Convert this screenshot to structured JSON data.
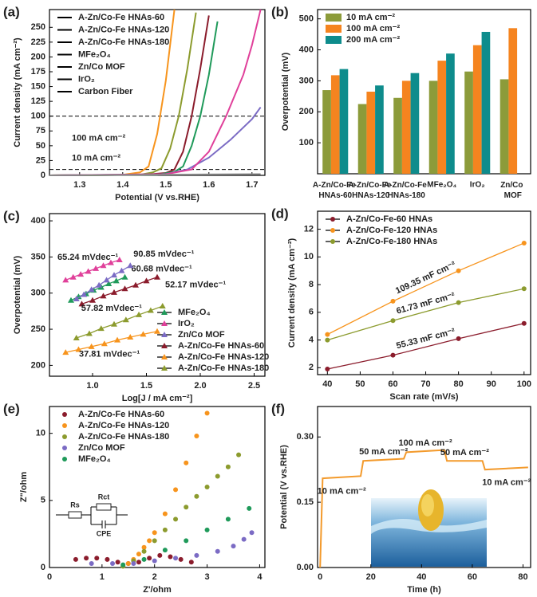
{
  "chart_data": [
    {
      "panel": "(a)",
      "type": "line",
      "xlabel": "Potential (V vs.RHE)",
      "ylabel": "Current density (mA cm⁻²)",
      "xlim": [
        1.23,
        1.73
      ],
      "ylim": [
        0,
        280
      ],
      "xticks": [
        1.3,
        1.4,
        1.5,
        1.6,
        1.7
      ],
      "yticks": [
        0,
        25,
        50,
        75,
        100,
        125,
        150,
        175,
        200,
        225,
        250
      ],
      "legend": "upper left",
      "reference_lines": [
        {
          "value": 100,
          "label": "100 mA cm⁻²"
        },
        {
          "value": 10,
          "label": "10 mA cm⁻²"
        }
      ],
      "series": [
        {
          "name": "A-Zn/Co-Fe HNAs-60",
          "color": "#8b1c2c",
          "x": [
            1.23,
            1.45,
            1.5,
            1.52,
            1.54,
            1.56,
            1.58,
            1.6
          ],
          "values": [
            0,
            1,
            4,
            10,
            40,
            100,
            180,
            270
          ]
        },
        {
          "name": "A-Zn/Co-Fe HNAs-120",
          "color": "#f7941d",
          "x": [
            1.23,
            1.4,
            1.44,
            1.46,
            1.48,
            1.5,
            1.52
          ],
          "values": [
            0,
            1,
            5,
            15,
            70,
            160,
            280
          ]
        },
        {
          "name": "A-Zn/Co-Fe HNAs-180",
          "color": "#8c9b2e",
          "x": [
            1.23,
            1.44,
            1.47,
            1.49,
            1.51,
            1.53,
            1.55,
            1.57
          ],
          "values": [
            0,
            1,
            5,
            12,
            45,
            100,
            180,
            275
          ]
        },
        {
          "name": "MFe₂O₄",
          "color": "#1f9a5a",
          "x": [
            1.23,
            1.48,
            1.52,
            1.54,
            1.56,
            1.58,
            1.6,
            1.62
          ],
          "values": [
            0,
            1,
            6,
            15,
            50,
            100,
            170,
            260
          ]
        },
        {
          "name": "Zn/Co MOF",
          "color": "#7b6bc4",
          "x": [
            1.23,
            1.5,
            1.55,
            1.6,
            1.65,
            1.7,
            1.72
          ],
          "values": [
            0,
            2,
            10,
            30,
            60,
            95,
            115
          ]
        },
        {
          "name": "IrO₂",
          "color": "#e0409a",
          "x": [
            1.23,
            1.5,
            1.56,
            1.6,
            1.64,
            1.68,
            1.7,
            1.72
          ],
          "values": [
            0,
            2,
            10,
            40,
            100,
            170,
            220,
            280
          ]
        },
        {
          "name": "Carbon Fiber",
          "color": "#888888",
          "x": [
            1.23,
            1.72
          ],
          "values": [
            0,
            2
          ]
        }
      ]
    },
    {
      "panel": "(b)",
      "type": "bar",
      "ylabel": "Overpotential (mV)",
      "ylim": [
        0,
        530
      ],
      "yticks": [
        100,
        200,
        300,
        400,
        500
      ],
      "legend": "upper left",
      "categories": [
        "A-Zn/Co-Fe HNAs-60",
        "A-Zn/Co-Fe HNAs-120",
        "A-Zn/Co-Fe HNAs-180",
        "MFe₂O₄",
        "IrO₂",
        "Zn/Co MOF"
      ],
      "series": [
        {
          "name": "10 mA cm⁻²",
          "color": "#8c9b3a",
          "values": [
            270,
            225,
            245,
            300,
            330,
            305
          ]
        },
        {
          "name": "100 mA cm⁻²",
          "color": "#f5841f",
          "values": [
            318,
            265,
            300,
            365,
            415,
            470
          ]
        },
        {
          "name": "200 mA cm⁻²",
          "color": "#0e8c8c",
          "values": [
            338,
            285,
            325,
            388,
            458,
            null
          ]
        }
      ]
    },
    {
      "panel": "(c)",
      "type": "scatter",
      "marker": "triangle",
      "connect": true,
      "xlabel": "Log[J / mA cm⁻²]",
      "ylabel": "Overpotential (mV)",
      "xlim": [
        0.6,
        2.6
      ],
      "ylim": [
        185,
        410
      ],
      "xticks": [
        {
          "value": 1,
          "label": "1.0"
        },
        1.5,
        {
          "value": 2,
          "label": "2.0"
        },
        2.5
      ],
      "yticks": [
        200,
        250,
        300,
        350,
        400
      ],
      "legend": "lower right",
      "series": [
        {
          "name": "MFe₂O₄",
          "color": "#1f9a5a",
          "annotation": "60.68 mVdec⁻¹",
          "x": [
            0.8,
            0.87,
            0.94,
            1.01,
            1.08,
            1.15,
            1.22,
            1.3
          ],
          "values": [
            290,
            295,
            299,
            304,
            308,
            313,
            317,
            322
          ]
        },
        {
          "name": "IrO₂",
          "color": "#e0409a",
          "annotation": "65.24 mVdec⁻¹",
          "x": [
            0.75,
            0.82,
            0.89,
            0.96,
            1.03,
            1.1,
            1.17,
            1.25
          ],
          "values": [
            318,
            322,
            326,
            330,
            334,
            338,
            342,
            346
          ]
        },
        {
          "name": "Zn/Co MOF",
          "color": "#7b6bc4",
          "annotation": "90.85 mVdec⁻¹",
          "x": [
            0.85,
            0.92,
            0.99,
            1.06,
            1.13,
            1.2,
            1.27,
            1.35
          ],
          "values": [
            292,
            298,
            305,
            311,
            318,
            325,
            331,
            338
          ]
        },
        {
          "name": "A-Zn/Co-Fe HNAs-60",
          "color": "#8b1c2c",
          "annotation": "52.17 mVdec⁻¹",
          "x": [
            0.9,
            1.0,
            1.1,
            1.2,
            1.3,
            1.4,
            1.5,
            1.6
          ],
          "values": [
            285,
            290,
            296,
            301,
            306,
            311,
            317,
            322
          ]
        },
        {
          "name": "A-Zn/Co-Fe HNAs-120",
          "color": "#f7941d",
          "annotation": "37.81 mVdec⁻¹",
          "x": [
            0.75,
            0.87,
            0.99,
            1.11,
            1.23,
            1.35,
            1.47,
            1.6
          ],
          "values": [
            218,
            222,
            226,
            230,
            235,
            239,
            243,
            247
          ]
        },
        {
          "name": "A-Zn/Co-Fe HNAs-180",
          "color": "#8c9b2e",
          "annotation": "57.82 mVdec⁻¹",
          "x": [
            0.85,
            0.97,
            1.08,
            1.2,
            1.31,
            1.43,
            1.54,
            1.65
          ],
          "values": [
            238,
            244,
            251,
            257,
            263,
            270,
            276,
            282
          ]
        }
      ]
    },
    {
      "panel": "(d)",
      "type": "scatter",
      "marker": "circle",
      "connect": true,
      "xlabel": "Scan rate (mV/s)",
      "ylabel": "Current density (mA cm⁻²)",
      "xlim": [
        37,
        102
      ],
      "ylim": [
        1.5,
        13.3
      ],
      "xticks": [
        40,
        50,
        60,
        70,
        80,
        90,
        100
      ],
      "yticks": [
        2,
        4,
        6,
        8,
        10,
        12
      ],
      "legend": "upper left",
      "series": [
        {
          "name": "A-Zn/Co-Fe-60 HNAs",
          "color": "#8b1c2c",
          "annotation": "55.33 mF cm⁻²",
          "x": [
            40,
            60,
            80,
            100
          ],
          "values": [
            1.9,
            2.9,
            4.1,
            5.2
          ]
        },
        {
          "name": "A-Zn/Co-Fe-120 HNAs",
          "color": "#f7941d",
          "annotation": "109.35 mF cm⁻²",
          "x": [
            40,
            60,
            80,
            100
          ],
          "values": [
            4.4,
            6.8,
            9.0,
            11.0
          ]
        },
        {
          "name": "A-Zn/Co-Fe-180 HNAs",
          "color": "#8c9b2e",
          "annotation": "61.73 mF cm⁻²",
          "x": [
            40,
            60,
            80,
            100
          ],
          "values": [
            4.0,
            5.4,
            6.7,
            7.7
          ]
        }
      ]
    },
    {
      "panel": "(e)",
      "type": "scatter",
      "marker": "circle",
      "xlabel": "Z'/ohm",
      "ylabel": "Z\"/ohm",
      "xlim": [
        0,
        4.1
      ],
      "ylim": [
        0,
        12
      ],
      "xticks": [
        0,
        1,
        2,
        3,
        4
      ],
      "yticks": [
        0,
        5,
        10
      ],
      "legend": "upper left",
      "circuit_labels": [
        "Rs",
        "Rct",
        "CPE"
      ],
      "series": [
        {
          "name": "A-Zn/Co-Fe HNAs-60",
          "color": "#8b1c2c",
          "x": [
            0.5,
            0.7,
            0.9,
            1.1,
            1.3,
            1.5,
            1.7,
            1.9,
            2.1,
            2.3,
            2.5,
            2.7
          ],
          "values": [
            0.6,
            0.7,
            0.7,
            0.6,
            0.4,
            0.3,
            0.4,
            0.7,
            0.9,
            0.8,
            0.6,
            0.4
          ]
        },
        {
          "name": "A-Zn/Co-Fe HNAs-120",
          "color": "#f7941d",
          "x": [
            1.4,
            1.5,
            1.6,
            1.7,
            1.8,
            1.9,
            2.0,
            2.2,
            2.4,
            2.6,
            2.8,
            3.0
          ],
          "values": [
            0.1,
            0.3,
            0.6,
            1.0,
            1.5,
            2.0,
            2.6,
            4.0,
            5.8,
            7.8,
            9.8,
            11.5
          ]
        },
        {
          "name": "A-Zn/Co-Fe HNAs-180",
          "color": "#8c9b2e",
          "x": [
            1.4,
            1.6,
            1.8,
            2.0,
            2.2,
            2.4,
            2.6,
            2.8,
            3.0,
            3.2,
            3.4,
            3.6
          ],
          "values": [
            0.1,
            0.5,
            1.2,
            2.0,
            2.8,
            3.6,
            4.5,
            5.3,
            6.0,
            6.8,
            7.5,
            8.4
          ]
        },
        {
          "name": "Zn/Co MOF",
          "color": "#7b6bc4",
          "x": [
            0.8,
            1.2,
            1.6,
            2.0,
            2.4,
            2.8,
            3.2,
            3.5,
            3.7,
            3.85
          ],
          "values": [
            0.3,
            0.3,
            0.3,
            0.5,
            0.7,
            0.9,
            1.2,
            1.6,
            2.1,
            2.6
          ]
        },
        {
          "name": "MFe₂O₄",
          "color": "#1f9a5a",
          "x": [
            1.4,
            1.8,
            2.2,
            2.6,
            3.0,
            3.4,
            3.8
          ],
          "values": [
            0.2,
            0.6,
            1.3,
            2.0,
            2.8,
            3.6,
            4.4
          ]
        }
      ]
    },
    {
      "panel": "(f)",
      "type": "line",
      "xlabel": "Time (h)",
      "ylabel": "Potential (V vs.RHE)",
      "xlim": [
        -1,
        83
      ],
      "ylim": [
        0,
        0.37
      ],
      "xticks": [
        0,
        20,
        40,
        60,
        80
      ],
      "yticks": [
        {
          "value": 0,
          "label": "0.00"
        },
        0.15,
        {
          "value": 0.3,
          "label": "0.30"
        }
      ],
      "annotations": [
        "10 mA cm⁻²",
        "50 mA cm⁻²",
        "100 mA cm⁻²",
        "50 mA cm⁻²",
        "10 mA cm⁻²"
      ],
      "series": [
        {
          "color": "#f39a2c",
          "x": [
            0,
            1,
            16,
            17,
            33,
            34,
            49,
            50,
            64,
            65,
            82
          ],
          "values": [
            0,
            0.205,
            0.21,
            0.245,
            0.25,
            0.265,
            0.27,
            0.245,
            0.245,
            0.225,
            0.23
          ]
        }
      ]
    }
  ]
}
